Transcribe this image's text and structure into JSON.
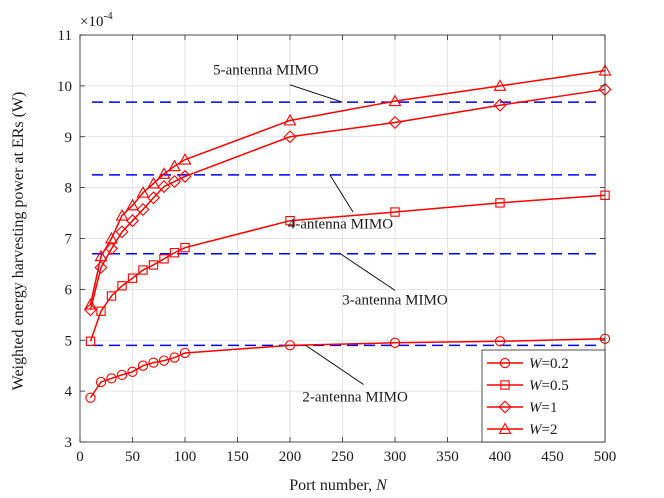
{
  "chart_data": {
    "type": "line",
    "title": "",
    "xlabel_text": "Port number, ",
    "xlabel_var": "N",
    "ylabel": "Weighted energy harvesting power at ERs (W)",
    "y_exponent_base": "×10",
    "y_exponent_power": "-4",
    "xlim": [
      0,
      500
    ],
    "ylim": [
      3,
      11
    ],
    "x_ticks": [
      0,
      50,
      100,
      150,
      200,
      250,
      300,
      350,
      400,
      450,
      500
    ],
    "y_ticks": [
      3,
      4,
      5,
      6,
      7,
      8,
      9,
      10,
      11
    ],
    "grid": true,
    "series": [
      {
        "name_var": "W",
        "name_value": "=0.2",
        "marker": "circle",
        "color": "#ff0000",
        "x": [
          10,
          20,
          30,
          40,
          50,
          60,
          70,
          80,
          90,
          100,
          200,
          300,
          400,
          500
        ],
        "values": [
          3.87,
          4.18,
          4.25,
          4.32,
          4.38,
          4.5,
          4.56,
          4.6,
          4.66,
          4.75,
          4.9,
          4.95,
          4.98,
          5.03
        ]
      },
      {
        "name_var": "W",
        "name_value": "=0.5",
        "marker": "square",
        "color": "#ff0000",
        "x": [
          10,
          20,
          30,
          40,
          50,
          60,
          70,
          80,
          90,
          100,
          200,
          300,
          400,
          500
        ],
        "values": [
          4.98,
          5.57,
          5.87,
          6.07,
          6.22,
          6.38,
          6.48,
          6.6,
          6.72,
          6.82,
          7.35,
          7.52,
          7.7,
          7.85
        ]
      },
      {
        "name_var": "W",
        "name_value": "=1",
        "marker": "diamond",
        "color": "#ff0000",
        "x": [
          10,
          20,
          30,
          40,
          50,
          60,
          70,
          80,
          90,
          100,
          200,
          300,
          400,
          500
        ],
        "values": [
          5.6,
          6.43,
          6.8,
          7.13,
          7.35,
          7.57,
          7.8,
          8.02,
          8.12,
          8.22,
          9.0,
          9.28,
          9.62,
          9.93
        ]
      },
      {
        "name_var": "W",
        "name_value": "=2",
        "marker": "triangle",
        "color": "#ff0000",
        "x": [
          10,
          20,
          30,
          40,
          50,
          60,
          70,
          80,
          90,
          100,
          200,
          300,
          400,
          500
        ],
        "values": [
          5.7,
          6.65,
          7.0,
          7.45,
          7.65,
          7.9,
          8.08,
          8.27,
          8.42,
          8.55,
          9.32,
          9.7,
          10.0,
          10.3
        ]
      }
    ],
    "reference_lines": [
      {
        "name": "2-antenna MIMO",
        "value": 4.9,
        "color": "#0000ff",
        "style": "dashed"
      },
      {
        "name": "3-antenna MIMO",
        "value": 6.7,
        "color": "#0000ff",
        "style": "dashed"
      },
      {
        "name": "4-antenna MIMO",
        "value": 8.25,
        "color": "#0000ff",
        "style": "dashed"
      },
      {
        "name": "5-antenna MIMO",
        "value": 9.68,
        "color": "#0000ff",
        "style": "dashed"
      }
    ],
    "annotations": [
      {
        "text": "5-antenna MIMO",
        "text_x": 177,
        "text_y": 10.22,
        "arrow_from": [
          200,
          10.02
        ],
        "arrow_to": [
          250,
          9.68
        ]
      },
      {
        "text": "4-antenna MIMO",
        "text_x": 248,
        "text_y": 7.2,
        "arrow_from": [
          260,
          7.52
        ],
        "arrow_to": [
          238,
          8.25
        ]
      },
      {
        "text": "3-antenna MIMO",
        "text_x": 300,
        "text_y": 5.7,
        "arrow_from": [
          300,
          5.98
        ],
        "arrow_to": [
          248,
          6.7
        ]
      },
      {
        "text": "2-antenna MIMO",
        "text_x": 262,
        "text_y": 3.8,
        "arrow_from": [
          270,
          4.13
        ],
        "arrow_to": [
          215,
          4.9
        ]
      }
    ],
    "legend_position": "bottom-right"
  }
}
